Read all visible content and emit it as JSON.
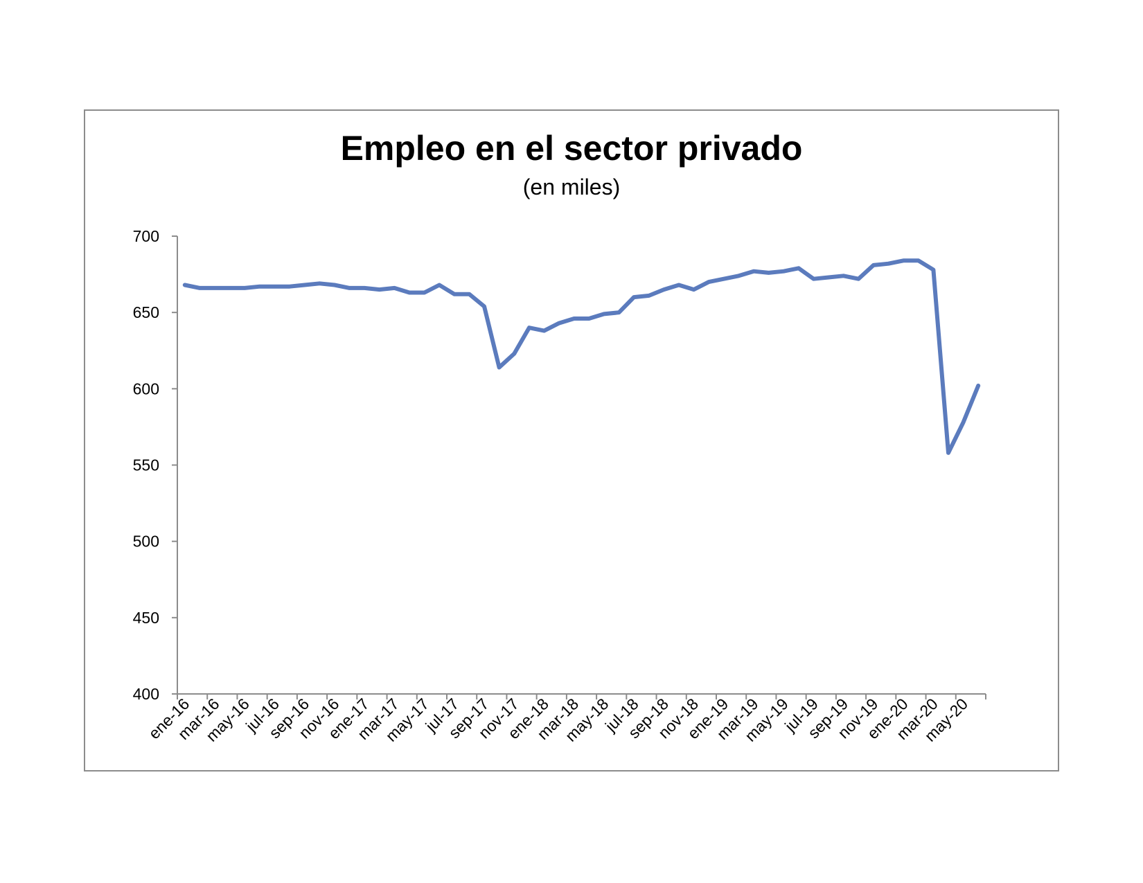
{
  "chart_data": {
    "type": "line",
    "title": "Empleo en el sector privado",
    "subtitle": "(en miles)",
    "xlabel": "",
    "ylabel": "",
    "ylim": [
      400,
      700
    ],
    "yticks": [
      400,
      450,
      500,
      550,
      600,
      650,
      700
    ],
    "grid": false,
    "legend": "none",
    "x": [
      "ene-16",
      "feb-16",
      "mar-16",
      "abr-16",
      "may-16",
      "jun-16",
      "jul-16",
      "ago-16",
      "sep-16",
      "oct-16",
      "nov-16",
      "dic-16",
      "ene-17",
      "feb-17",
      "mar-17",
      "abr-17",
      "may-17",
      "jun-17",
      "jul-17",
      "ago-17",
      "sep-17",
      "oct-17",
      "nov-17",
      "dic-17",
      "ene-18",
      "feb-18",
      "mar-18",
      "abr-18",
      "may-18",
      "jun-18",
      "jul-18",
      "ago-18",
      "sep-18",
      "oct-18",
      "nov-18",
      "dic-18",
      "ene-19",
      "feb-19",
      "mar-19",
      "abr-19",
      "may-19",
      "jun-19",
      "jul-19",
      "ago-19",
      "sep-19",
      "oct-19",
      "nov-19",
      "dic-19",
      "ene-20",
      "feb-20",
      "mar-20",
      "abr-20",
      "may-20",
      "jun-20"
    ],
    "xtick_labels": [
      "ene-16",
      "mar-16",
      "may-16",
      "jul-16",
      "sep-16",
      "nov-16",
      "ene-17",
      "mar-17",
      "may-17",
      "jul-17",
      "sep-17",
      "nov-17",
      "ene-18",
      "mar-18",
      "may-18",
      "jul-18",
      "sep-18",
      "nov-18",
      "ene-19",
      "mar-19",
      "may-19",
      "jul-19",
      "sep-19",
      "nov-19",
      "ene-20",
      "mar-20",
      "may-20"
    ],
    "series": [
      {
        "color": "#5b7bbd",
        "values": [
          668,
          666,
          666,
          666,
          666,
          667,
          667,
          667,
          668,
          669,
          668,
          666,
          666,
          665,
          666,
          663,
          663,
          668,
          662,
          662,
          654,
          614,
          623,
          640,
          638,
          643,
          646,
          646,
          649,
          650,
          660,
          661,
          665,
          668,
          665,
          670,
          672,
          674,
          677,
          676,
          677,
          679,
          672,
          673,
          674,
          672,
          681,
          682,
          684,
          684,
          678,
          558,
          578,
          602
        ]
      }
    ]
  }
}
